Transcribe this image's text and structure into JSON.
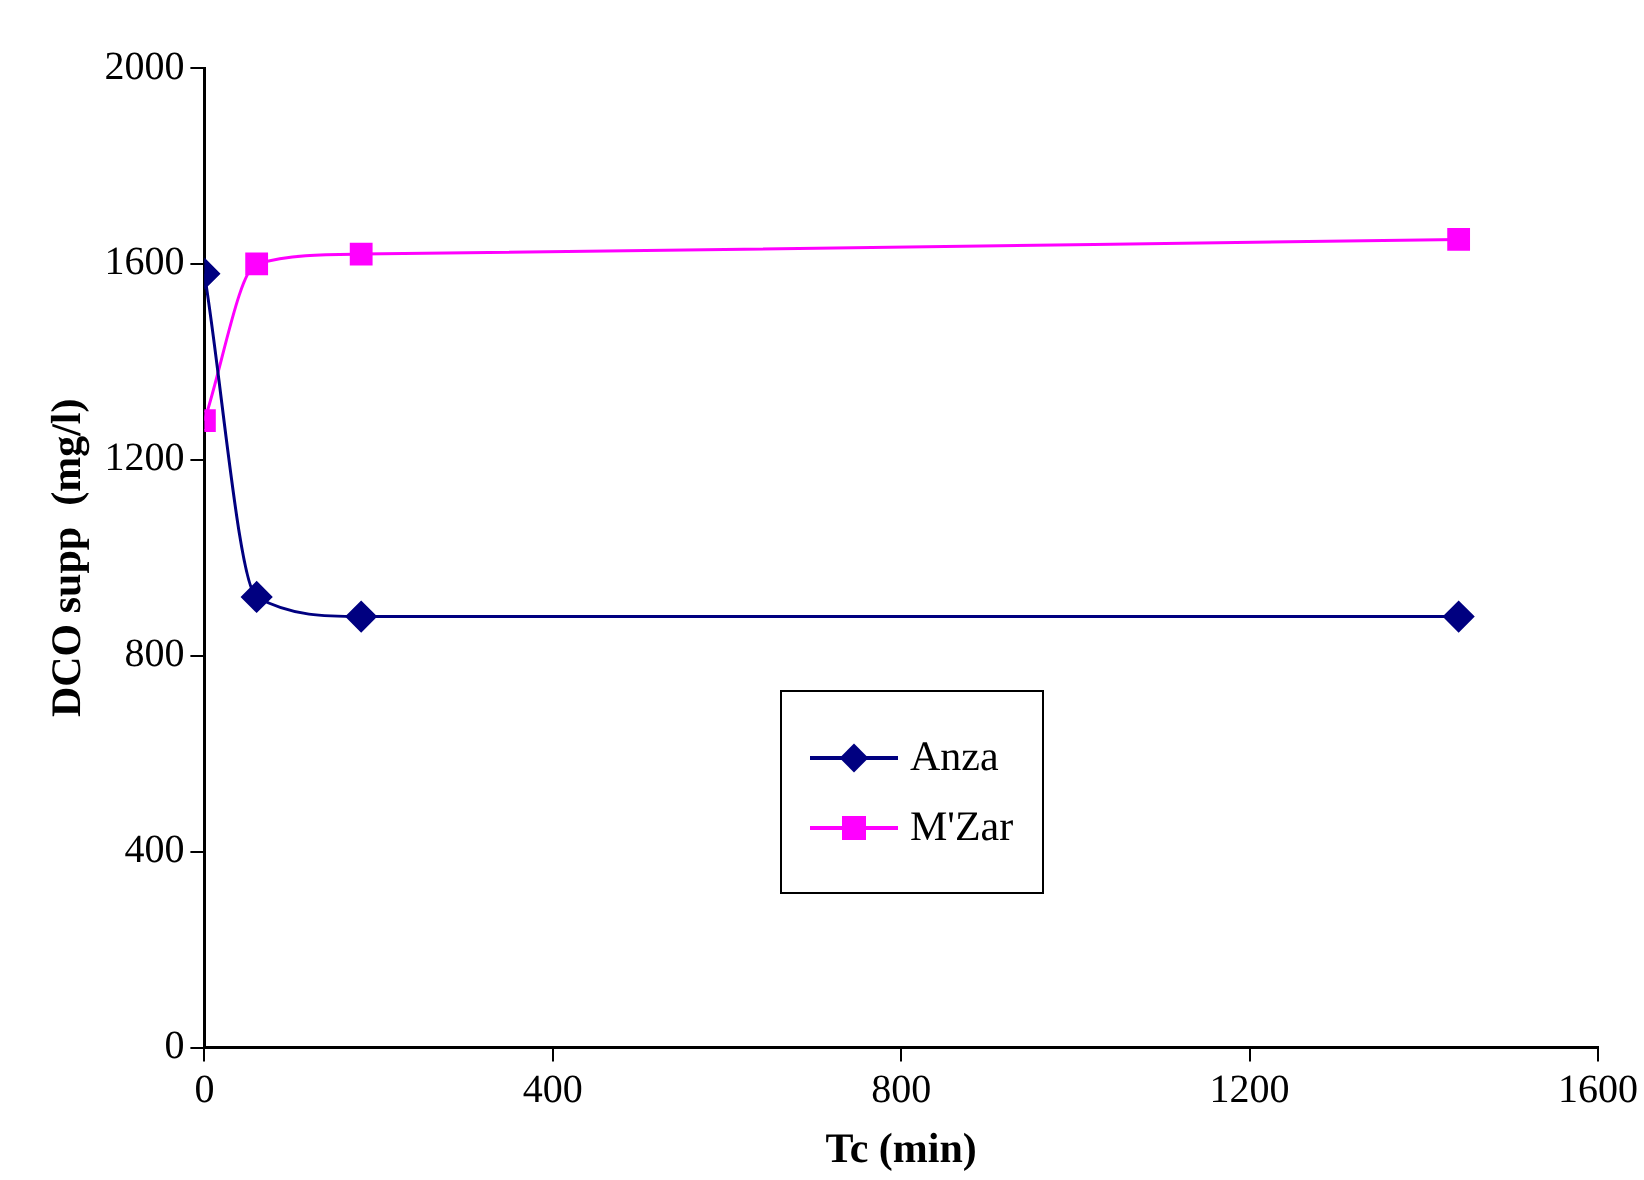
{
  "chart_data": {
    "type": "line",
    "xlabel": "Tc (min)",
    "ylabel": "DCO supp  (mg/l)",
    "x": [
      0,
      60,
      180,
      1440
    ],
    "series": [
      {
        "name": "Anza",
        "color": "#000080",
        "marker": "diamond",
        "values": [
          1580,
          920,
          880,
          880
        ]
      },
      {
        "name": "M'Zar",
        "color": "#ff00ff",
        "marker": "square",
        "values": [
          1280,
          1600,
          1620,
          1650
        ]
      }
    ],
    "xlim": [
      0,
      1600
    ],
    "xticks": [
      0,
      400,
      800,
      1200,
      1600
    ],
    "ylim": [
      0,
      2000
    ],
    "yticks": [
      0,
      400,
      800,
      1200,
      1600,
      2000
    ],
    "grid": false,
    "legend": "center",
    "line_style": "solid"
  }
}
